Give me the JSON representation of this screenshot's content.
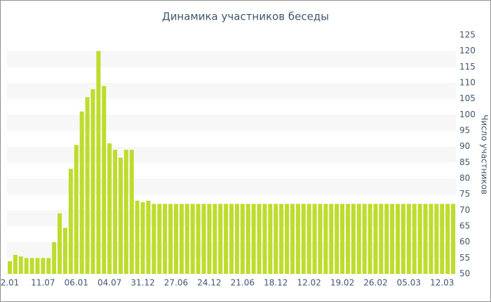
{
  "chart_data": {
    "type": "bar",
    "title": "Динамика участников беседы",
    "y_axis_label": "Число участников",
    "categories": [
      "2.01",
      null,
      null,
      null,
      null,
      null,
      "11.07",
      null,
      null,
      null,
      null,
      null,
      "06.01",
      null,
      null,
      null,
      null,
      null,
      "04.07",
      null,
      null,
      null,
      null,
      null,
      "31.12",
      null,
      null,
      null,
      null,
      null,
      "27.06",
      null,
      null,
      null,
      null,
      null,
      "24.12",
      null,
      null,
      null,
      null,
      null,
      "21.06",
      null,
      null,
      null,
      null,
      null,
      "18.12",
      null,
      null,
      null,
      null,
      null,
      "12.02",
      null,
      null,
      null,
      null,
      null,
      "19.02",
      null,
      null,
      null,
      null,
      null,
      "26.02",
      null,
      null,
      null,
      null,
      null,
      "05.03",
      null,
      null,
      null,
      null,
      null,
      "12.03",
      null,
      null
    ],
    "values": [
      54,
      56,
      55.5,
      55,
      55,
      55,
      55,
      55,
      60,
      69,
      64.5,
      83,
      90.5,
      101,
      105.5,
      108,
      120,
      109,
      91,
      89,
      86.5,
      89,
      89,
      73,
      72.5,
      73,
      72,
      72,
      72,
      72,
      72,
      72,
      72,
      72,
      72,
      72,
      72,
      72,
      72,
      72,
      72,
      72,
      72,
      72,
      72,
      72,
      72,
      72,
      72,
      72,
      72,
      72,
      72,
      72,
      72,
      72,
      72,
      72,
      72,
      72,
      72,
      72,
      72,
      72,
      72,
      72,
      72,
      72,
      72,
      72,
      72,
      72,
      72,
      72,
      72,
      72,
      72,
      72,
      72,
      72,
      72
    ],
    "color": "#bddc2c",
    "ylim": [
      50,
      125
    ],
    "yticks": [
      50,
      55,
      60,
      65,
      70,
      75,
      80,
      85,
      90,
      95,
      100,
      105,
      110,
      115,
      120,
      125
    ],
    "grid": "bands",
    "y_axis_side": "right"
  }
}
